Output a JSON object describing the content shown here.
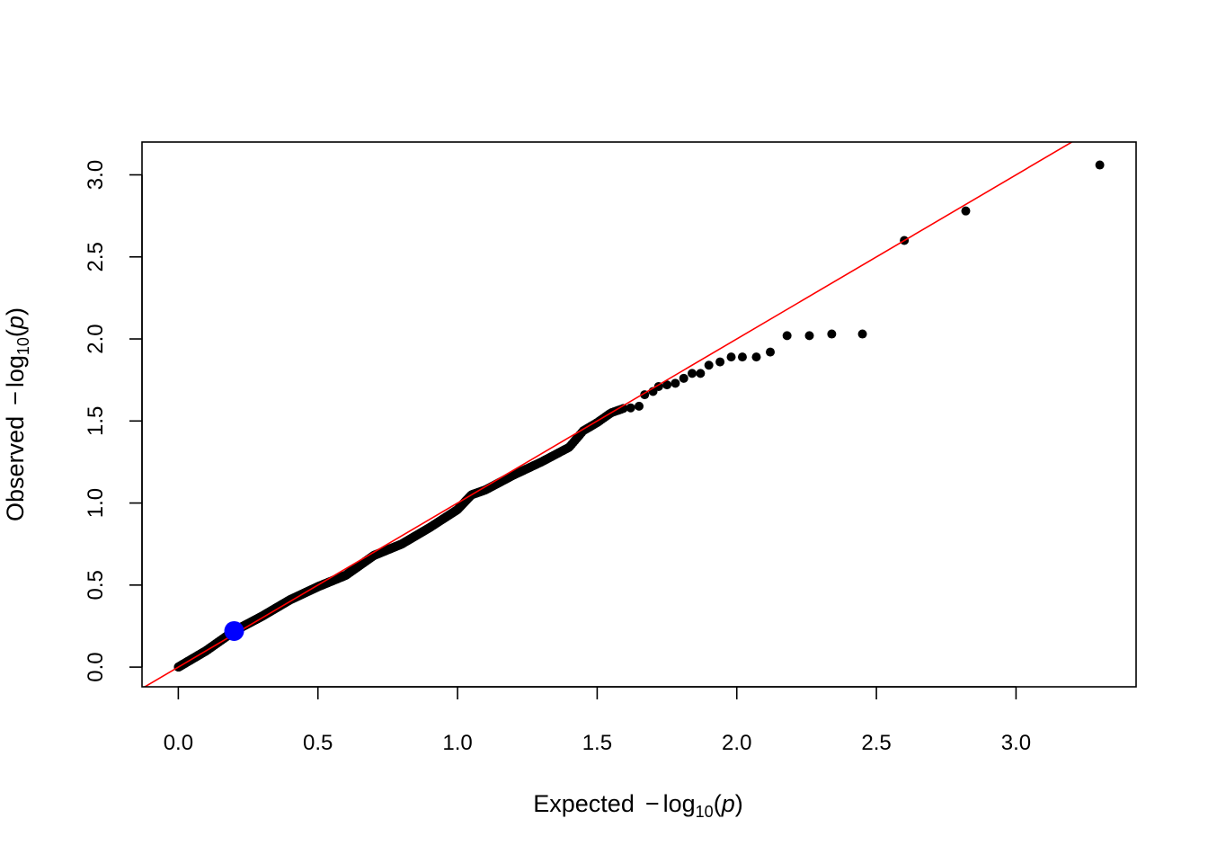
{
  "chart_data": {
    "type": "scatter",
    "title": "",
    "xlabel": {
      "prefix": "Expected",
      "minus": "−",
      "fn": "log",
      "sub": "10",
      "open": "(",
      "var": "p",
      "close": ")"
    },
    "ylabel": {
      "prefix": "Observed",
      "minus": "−",
      "fn": "log",
      "sub": "10",
      "open": "(",
      "var": "p",
      "close": ")"
    },
    "xlim": [
      -0.13,
      3.43
    ],
    "ylim": [
      -0.12,
      3.2
    ],
    "x_ticks": [
      "0.0",
      "0.5",
      "1.0",
      "1.5",
      "2.0",
      "2.5",
      "3.0"
    ],
    "y_ticks": [
      "0.0",
      "0.5",
      "1.0",
      "1.5",
      "2.0",
      "2.5",
      "3.0"
    ],
    "grid": false,
    "legend": "none",
    "reference_line": {
      "slope": 1,
      "intercept": 0,
      "color": "#ff0000"
    },
    "highlight_point": {
      "x": 0.2,
      "y": 0.22,
      "color": "#0000ff"
    },
    "point_color": "#000000",
    "tail_points": [
      {
        "x": 1.62,
        "y": 1.58
      },
      {
        "x": 1.65,
        "y": 1.59
      },
      {
        "x": 1.67,
        "y": 1.66
      },
      {
        "x": 1.7,
        "y": 1.68
      },
      {
        "x": 1.72,
        "y": 1.71
      },
      {
        "x": 1.75,
        "y": 1.72
      },
      {
        "x": 1.78,
        "y": 1.73
      },
      {
        "x": 1.81,
        "y": 1.76
      },
      {
        "x": 1.84,
        "y": 1.79
      },
      {
        "x": 1.87,
        "y": 1.79
      },
      {
        "x": 1.9,
        "y": 1.84
      },
      {
        "x": 1.94,
        "y": 1.86
      },
      {
        "x": 1.98,
        "y": 1.89
      },
      {
        "x": 2.02,
        "y": 1.89
      },
      {
        "x": 2.07,
        "y": 1.89
      },
      {
        "x": 2.12,
        "y": 1.92
      },
      {
        "x": 2.18,
        "y": 2.02
      },
      {
        "x": 2.26,
        "y": 2.02
      },
      {
        "x": 2.34,
        "y": 2.03
      },
      {
        "x": 2.45,
        "y": 2.03
      },
      {
        "x": 2.6,
        "y": 2.6
      },
      {
        "x": 2.82,
        "y": 2.78
      },
      {
        "x": 3.3,
        "y": 3.06
      }
    ],
    "bulk_trace": [
      [
        0.0,
        0.0
      ],
      [
        0.1,
        0.1
      ],
      [
        0.2,
        0.22
      ],
      [
        0.3,
        0.31
      ],
      [
        0.4,
        0.41
      ],
      [
        0.5,
        0.49
      ],
      [
        0.6,
        0.56
      ],
      [
        0.7,
        0.68
      ],
      [
        0.8,
        0.75
      ],
      [
        0.9,
        0.85
      ],
      [
        1.0,
        0.96
      ],
      [
        1.05,
        1.05
      ],
      [
        1.1,
        1.08
      ],
      [
        1.2,
        1.17
      ],
      [
        1.3,
        1.25
      ],
      [
        1.4,
        1.34
      ],
      [
        1.45,
        1.44
      ],
      [
        1.5,
        1.49
      ],
      [
        1.55,
        1.55
      ],
      [
        1.6,
        1.58
      ]
    ]
  }
}
